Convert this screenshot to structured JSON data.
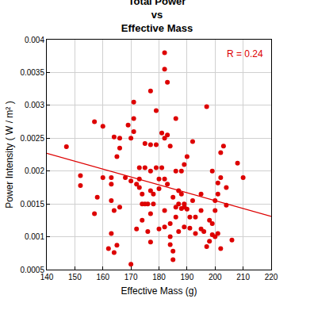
{
  "chart_data": {
    "type": "scatter",
    "title": "Total Power\nvs\nEffective Mass",
    "x_label": "Effective Mass (g)",
    "y_label": "Power Intensity ( W / m² )",
    "annotations": [
      "R = 0.24"
    ],
    "xlim": [
      140,
      220
    ],
    "xticks": [
      140,
      150,
      160,
      170,
      180,
      190,
      200,
      210,
      220
    ],
    "ylim": [
      0.0005,
      0.004
    ],
    "yticks": [
      0.0005,
      0.001,
      0.0015,
      0.002,
      0.0025,
      0.003,
      0.0035,
      0.004
    ],
    "grid": true,
    "series": [
      {
        "type": "scatter",
        "marker": "circle",
        "color": "#dd0000",
        "x": [
          147,
          152,
          152,
          157,
          157,
          158,
          160,
          160,
          162,
          163,
          163,
          163,
          163,
          164,
          164,
          164,
          165,
          165,
          166,
          166,
          166,
          168,
          169,
          170,
          170,
          170,
          171,
          171,
          171,
          172,
          172,
          173,
          173,
          173,
          174,
          174,
          174,
          175,
          175,
          175,
          176,
          176,
          177,
          177,
          177,
          177,
          177,
          177,
          178,
          178,
          179,
          179,
          179,
          180,
          180,
          180,
          181,
          181,
          182,
          182,
          182,
          182,
          182,
          182,
          183,
          183,
          183,
          184,
          184,
          184,
          184,
          185,
          185,
          185,
          186,
          186,
          186,
          186,
          187,
          187,
          187,
          188,
          188,
          188,
          189,
          189,
          189,
          189,
          190,
          190,
          191,
          191,
          192,
          192,
          193,
          193,
          195,
          195,
          195,
          196,
          197,
          197,
          198,
          198,
          199,
          199,
          199,
          200,
          200,
          200,
          201,
          201,
          201,
          202,
          202,
          202,
          203,
          204,
          204,
          206,
          208,
          210
        ],
        "values": [
          0.00237,
          0.00193,
          0.00178,
          0.00275,
          0.00135,
          0.0016,
          0.0019,
          0.00268,
          0.00082,
          0.0019,
          0.0018,
          0.00155,
          0.00105,
          0.00252,
          0.0014,
          0.00076,
          0.00222,
          0.00087,
          0.0025,
          0.00235,
          0.00145,
          0.0019,
          0.0027,
          0.0025,
          0.00185,
          0.00058,
          0.00305,
          0.0028,
          0.0026,
          0.0018,
          0.00112,
          0.00205,
          0.00188,
          0.00175,
          0.00165,
          0.0015,
          0.00125,
          0.00242,
          0.00205,
          0.0015,
          0.0015,
          0.00108,
          0.00322,
          0.0024,
          0.002,
          0.0017,
          0.00135,
          0.00092,
          0.0015,
          0.00165,
          0.00292,
          0.0024,
          0.00205,
          0.00112,
          0.00188,
          0.00173,
          0.00258,
          0.00205,
          0.0038,
          0.00355,
          0.0025,
          0.00188,
          0.0014,
          0.00115,
          0.00335,
          0.00255,
          0.0018,
          0.00238,
          0.0012,
          0.001,
          0.00088,
          0.0016,
          0.00078,
          0.00065,
          0.0028,
          0.002,
          0.00145,
          0.0013,
          0.0017,
          0.0015,
          0.00108,
          0.002,
          0.00165,
          0.00143,
          0.0021,
          0.0015,
          0.00145,
          0.00115,
          0.00222,
          0.00142,
          0.0013,
          0.00113,
          0.00155,
          0.00245,
          0.0013,
          0.00105,
          0.00165,
          0.0014,
          0.00112,
          0.00108,
          0.00298,
          0.00085,
          0.00093,
          0.00125,
          0.002,
          0.0012,
          0.00103,
          0.00155,
          0.0014,
          0.001,
          0.00182,
          0.00165,
          0.00105,
          0.00228,
          0.0019,
          0.00082,
          0.00238,
          0.00175,
          0.00148,
          0.00095,
          0.00212,
          0.0019
        ]
      },
      {
        "type": "line",
        "line_style": "solid",
        "color": "#dd0000",
        "x": [
          140,
          220
        ],
        "values": [
          0.00227,
          0.00131
        ]
      }
    ]
  }
}
